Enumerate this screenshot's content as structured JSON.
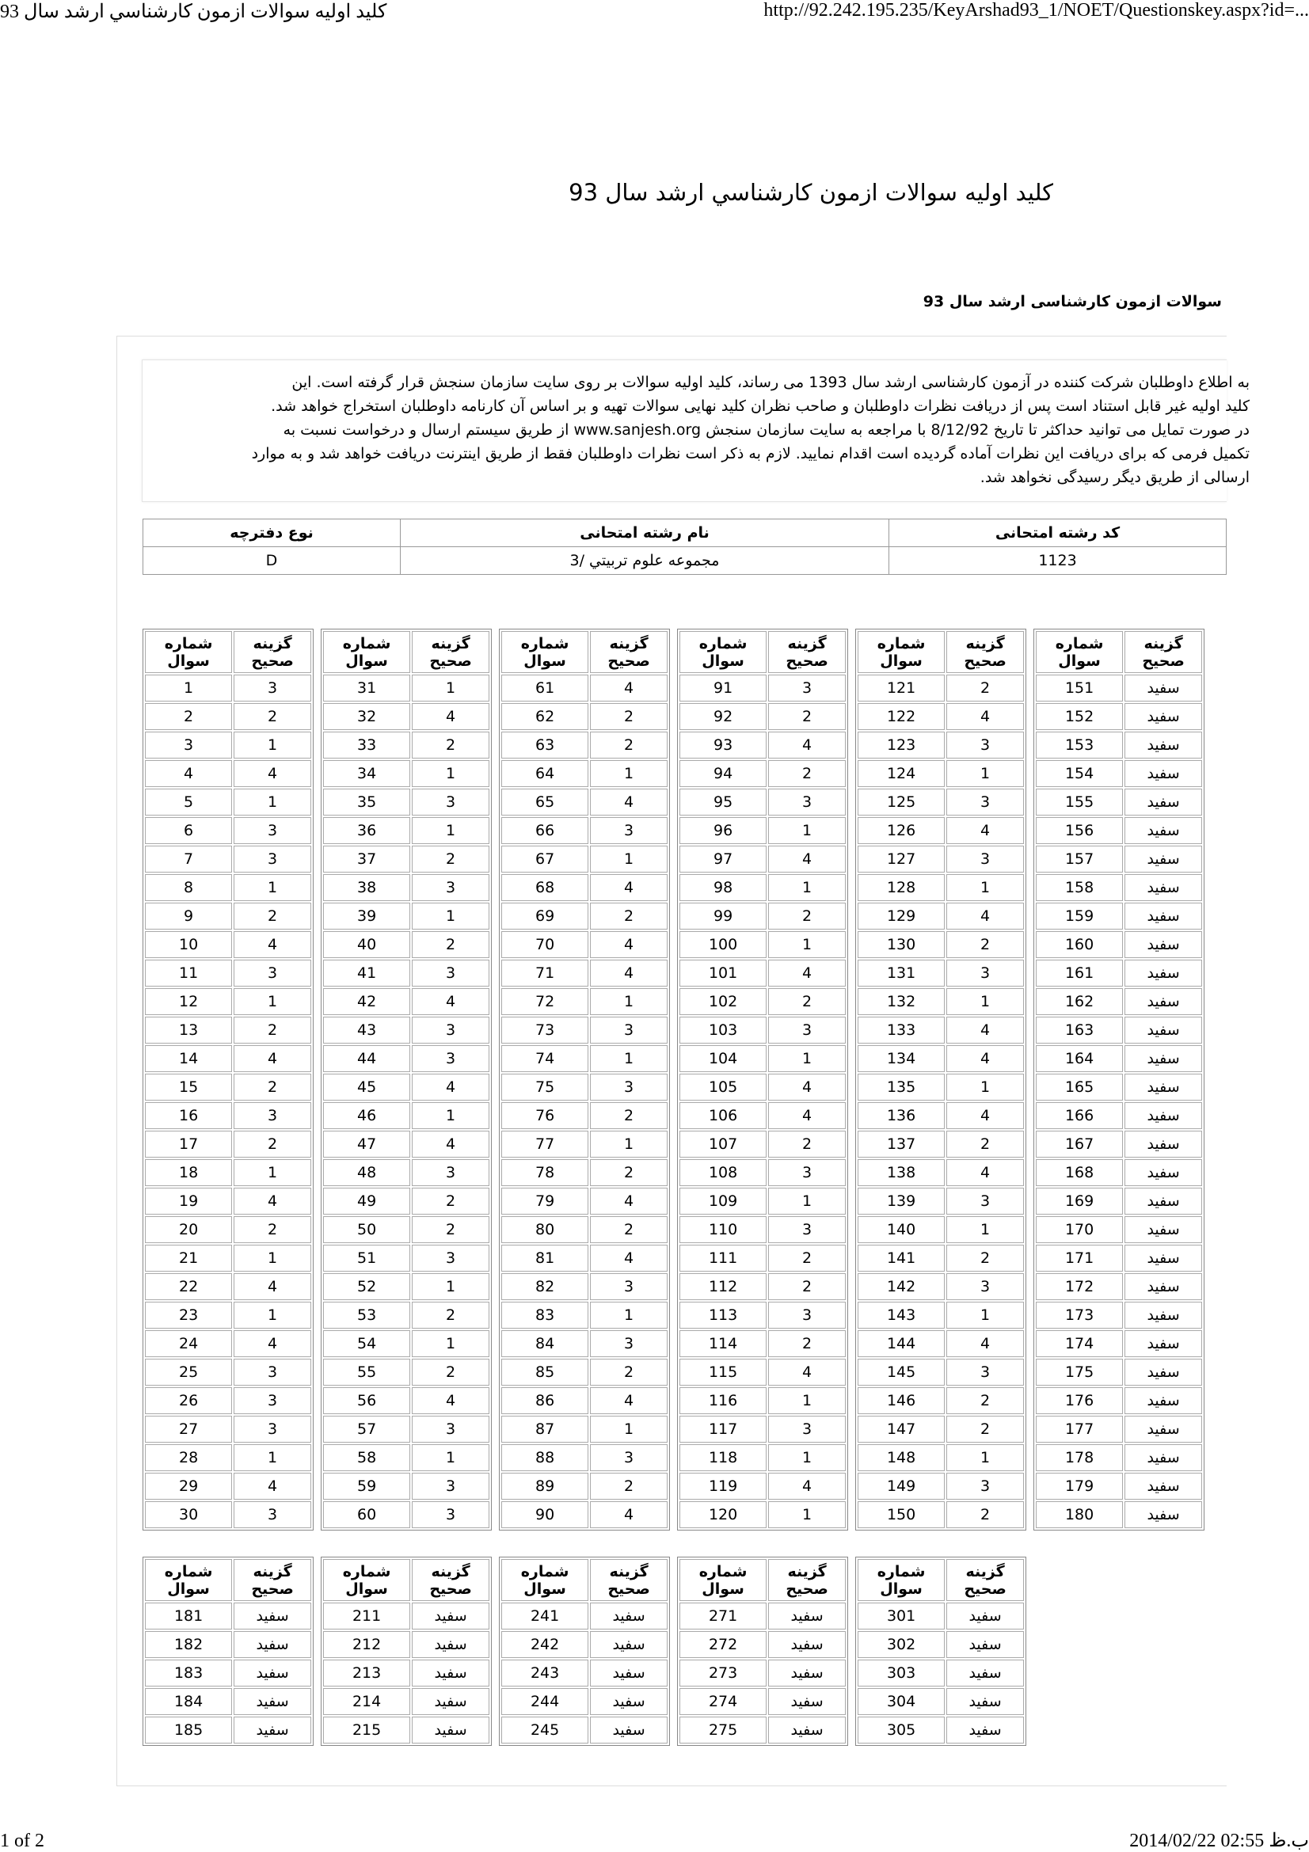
{
  "print_header": {
    "title": "كليد اوليه سوالات ازمون كارشناسي ارشد سال 93",
    "url": "http://92.242.195.235/KeyArshad93_1/NOET/Questionskey.aspx?id=..."
  },
  "page_title": "كليد اوليه سوالات ازمون كارشناسي ارشد سال 93",
  "subtitle": "سوالات ازمون کارشناسی ارشد سال 93",
  "notice_lines": [
    "به اطلاع داوطلبان شرکت کننده در آزمون کارشناسی ارشد سال 1393 می رساند، کلید اولیه سوالات بر روی سایت سازمان سنجش قرار گرفته است. این",
    "کلید اولیه غیر قابل استناد است پس از دریافت نظرات داوطلبان و صاحب نظران کلید نهایی سوالات تهیه و بر اساس آن کارنامه داوطلبان استخراج خواهد شد.",
    "در صورت تمایل می توانید حداکثر تا تاریخ 8/12/92 با مراجعه به سایت سازمان سنجش www.sanjesh.org از طریق  سیستم ارسال و درخواست نسبت به",
    "تکمیل فرمی که برای دریافت این نظرات آماده گردیده است اقدام نمایید. لازم به ذکر است نظرات داوطلبان فقط از طریق اینترنت دریافت خواهد شد و به موارد",
    "ارسالی از طریق دیگر رسیدگی نخواهد شد."
  ],
  "info_table": {
    "headers": [
      "کد رشته امتحانی",
      "نام رشته امتحانی",
      "نوع دفترچه"
    ],
    "values": [
      1123,
      "مجموعه علوم تربيتي /3",
      "D"
    ]
  },
  "key_headers": {
    "number": "شماره سوال",
    "answer": "گزینه صحیح"
  },
  "key_blocks": [
    {
      "groups": [
        {
          "rows": [
            [
              1,
              3
            ],
            [
              2,
              2
            ],
            [
              3,
              1
            ],
            [
              4,
              4
            ],
            [
              5,
              1
            ],
            [
              6,
              3
            ],
            [
              7,
              3
            ],
            [
              8,
              1
            ],
            [
              9,
              2
            ],
            [
              10,
              4
            ],
            [
              11,
              3
            ],
            [
              12,
              1
            ],
            [
              13,
              2
            ],
            [
              14,
              4
            ],
            [
              15,
              2
            ],
            [
              16,
              3
            ],
            [
              17,
              2
            ],
            [
              18,
              1
            ],
            [
              19,
              4
            ],
            [
              20,
              2
            ],
            [
              21,
              1
            ],
            [
              22,
              4
            ],
            [
              23,
              1
            ],
            [
              24,
              4
            ],
            [
              25,
              3
            ],
            [
              26,
              3
            ],
            [
              27,
              3
            ],
            [
              28,
              1
            ],
            [
              29,
              4
            ],
            [
              30,
              3
            ]
          ]
        },
        {
          "rows": [
            [
              31,
              1
            ],
            [
              32,
              4
            ],
            [
              33,
              2
            ],
            [
              34,
              1
            ],
            [
              35,
              3
            ],
            [
              36,
              1
            ],
            [
              37,
              2
            ],
            [
              38,
              3
            ],
            [
              39,
              1
            ],
            [
              40,
              2
            ],
            [
              41,
              3
            ],
            [
              42,
              4
            ],
            [
              43,
              3
            ],
            [
              44,
              3
            ],
            [
              45,
              4
            ],
            [
              46,
              1
            ],
            [
              47,
              4
            ],
            [
              48,
              3
            ],
            [
              49,
              2
            ],
            [
              50,
              2
            ],
            [
              51,
              3
            ],
            [
              52,
              1
            ],
            [
              53,
              2
            ],
            [
              54,
              1
            ],
            [
              55,
              2
            ],
            [
              56,
              4
            ],
            [
              57,
              3
            ],
            [
              58,
              1
            ],
            [
              59,
              3
            ],
            [
              60,
              3
            ]
          ]
        },
        {
          "rows": [
            [
              61,
              4
            ],
            [
              62,
              2
            ],
            [
              63,
              2
            ],
            [
              64,
              1
            ],
            [
              65,
              4
            ],
            [
              66,
              3
            ],
            [
              67,
              1
            ],
            [
              68,
              4
            ],
            [
              69,
              2
            ],
            [
              70,
              4
            ],
            [
              71,
              4
            ],
            [
              72,
              1
            ],
            [
              73,
              3
            ],
            [
              74,
              1
            ],
            [
              75,
              3
            ],
            [
              76,
              2
            ],
            [
              77,
              1
            ],
            [
              78,
              2
            ],
            [
              79,
              4
            ],
            [
              80,
              2
            ],
            [
              81,
              4
            ],
            [
              82,
              3
            ],
            [
              83,
              1
            ],
            [
              84,
              3
            ],
            [
              85,
              2
            ],
            [
              86,
              4
            ],
            [
              87,
              1
            ],
            [
              88,
              3
            ],
            [
              89,
              2
            ],
            [
              90,
              4
            ]
          ]
        },
        {
          "rows": [
            [
              91,
              3
            ],
            [
              92,
              2
            ],
            [
              93,
              4
            ],
            [
              94,
              2
            ],
            [
              95,
              3
            ],
            [
              96,
              1
            ],
            [
              97,
              4
            ],
            [
              98,
              1
            ],
            [
              99,
              2
            ],
            [
              100,
              1
            ],
            [
              101,
              4
            ],
            [
              102,
              2
            ],
            [
              103,
              3
            ],
            [
              104,
              1
            ],
            [
              105,
              4
            ],
            [
              106,
              4
            ],
            [
              107,
              2
            ],
            [
              108,
              3
            ],
            [
              109,
              1
            ],
            [
              110,
              3
            ],
            [
              111,
              2
            ],
            [
              112,
              2
            ],
            [
              113,
              3
            ],
            [
              114,
              2
            ],
            [
              115,
              4
            ],
            [
              116,
              1
            ],
            [
              117,
              3
            ],
            [
              118,
              1
            ],
            [
              119,
              4
            ],
            [
              120,
              1
            ]
          ]
        },
        {
          "rows": [
            [
              121,
              2
            ],
            [
              122,
              4
            ],
            [
              123,
              3
            ],
            [
              124,
              1
            ],
            [
              125,
              3
            ],
            [
              126,
              4
            ],
            [
              127,
              3
            ],
            [
              128,
              1
            ],
            [
              129,
              4
            ],
            [
              130,
              2
            ],
            [
              131,
              3
            ],
            [
              132,
              1
            ],
            [
              133,
              4
            ],
            [
              134,
              4
            ],
            [
              135,
              1
            ],
            [
              136,
              4
            ],
            [
              137,
              2
            ],
            [
              138,
              4
            ],
            [
              139,
              3
            ],
            [
              140,
              1
            ],
            [
              141,
              2
            ],
            [
              142,
              3
            ],
            [
              143,
              1
            ],
            [
              144,
              4
            ],
            [
              145,
              3
            ],
            [
              146,
              2
            ],
            [
              147,
              2
            ],
            [
              148,
              1
            ],
            [
              149,
              3
            ],
            [
              150,
              2
            ]
          ]
        },
        {
          "rows": [
            [
              151,
              "سفید"
            ],
            [
              152,
              "سفید"
            ],
            [
              153,
              "سفید"
            ],
            [
              154,
              "سفید"
            ],
            [
              155,
              "سفید"
            ],
            [
              156,
              "سفید"
            ],
            [
              157,
              "سفید"
            ],
            [
              158,
              "سفید"
            ],
            [
              159,
              "سفید"
            ],
            [
              160,
              "سفید"
            ],
            [
              161,
              "سفید"
            ],
            [
              162,
              "سفید"
            ],
            [
              163,
              "سفید"
            ],
            [
              164,
              "سفید"
            ],
            [
              165,
              "سفید"
            ],
            [
              166,
              "سفید"
            ],
            [
              167,
              "سفید"
            ],
            [
              168,
              "سفید"
            ],
            [
              169,
              "سفید"
            ],
            [
              170,
              "سفید"
            ],
            [
              171,
              "سفید"
            ],
            [
              172,
              "سفید"
            ],
            [
              173,
              "سفید"
            ],
            [
              174,
              "سفید"
            ],
            [
              175,
              "سفید"
            ],
            [
              176,
              "سفید"
            ],
            [
              177,
              "سفید"
            ],
            [
              178,
              "سفید"
            ],
            [
              179,
              "سفید"
            ],
            [
              180,
              "سفید"
            ]
          ]
        }
      ]
    },
    {
      "groups": [
        {
          "rows": [
            [
              181,
              "سفید"
            ],
            [
              182,
              "سفید"
            ],
            [
              183,
              "سفید"
            ],
            [
              184,
              "سفید"
            ],
            [
              185,
              "سفید"
            ]
          ]
        },
        {
          "rows": [
            [
              211,
              "سفید"
            ],
            [
              212,
              "سفید"
            ],
            [
              213,
              "سفید"
            ],
            [
              214,
              "سفید"
            ],
            [
              215,
              "سفید"
            ]
          ]
        },
        {
          "rows": [
            [
              241,
              "سفید"
            ],
            [
              242,
              "سفید"
            ],
            [
              243,
              "سفید"
            ],
            [
              244,
              "سفید"
            ],
            [
              245,
              "سفید"
            ]
          ]
        },
        {
          "rows": [
            [
              271,
              "سفید"
            ],
            [
              272,
              "سفید"
            ],
            [
              273,
              "سفید"
            ],
            [
              274,
              "سفید"
            ],
            [
              275,
              "سفید"
            ]
          ]
        },
        {
          "rows": [
            [
              301,
              "سفید"
            ],
            [
              302,
              "سفید"
            ],
            [
              303,
              "سفید"
            ],
            [
              304,
              "سفید"
            ],
            [
              305,
              "سفید"
            ]
          ]
        }
      ]
    }
  ],
  "print_footer": {
    "page": "1 of 2",
    "date": "2014/02/22 02:55 ب.ظ"
  }
}
